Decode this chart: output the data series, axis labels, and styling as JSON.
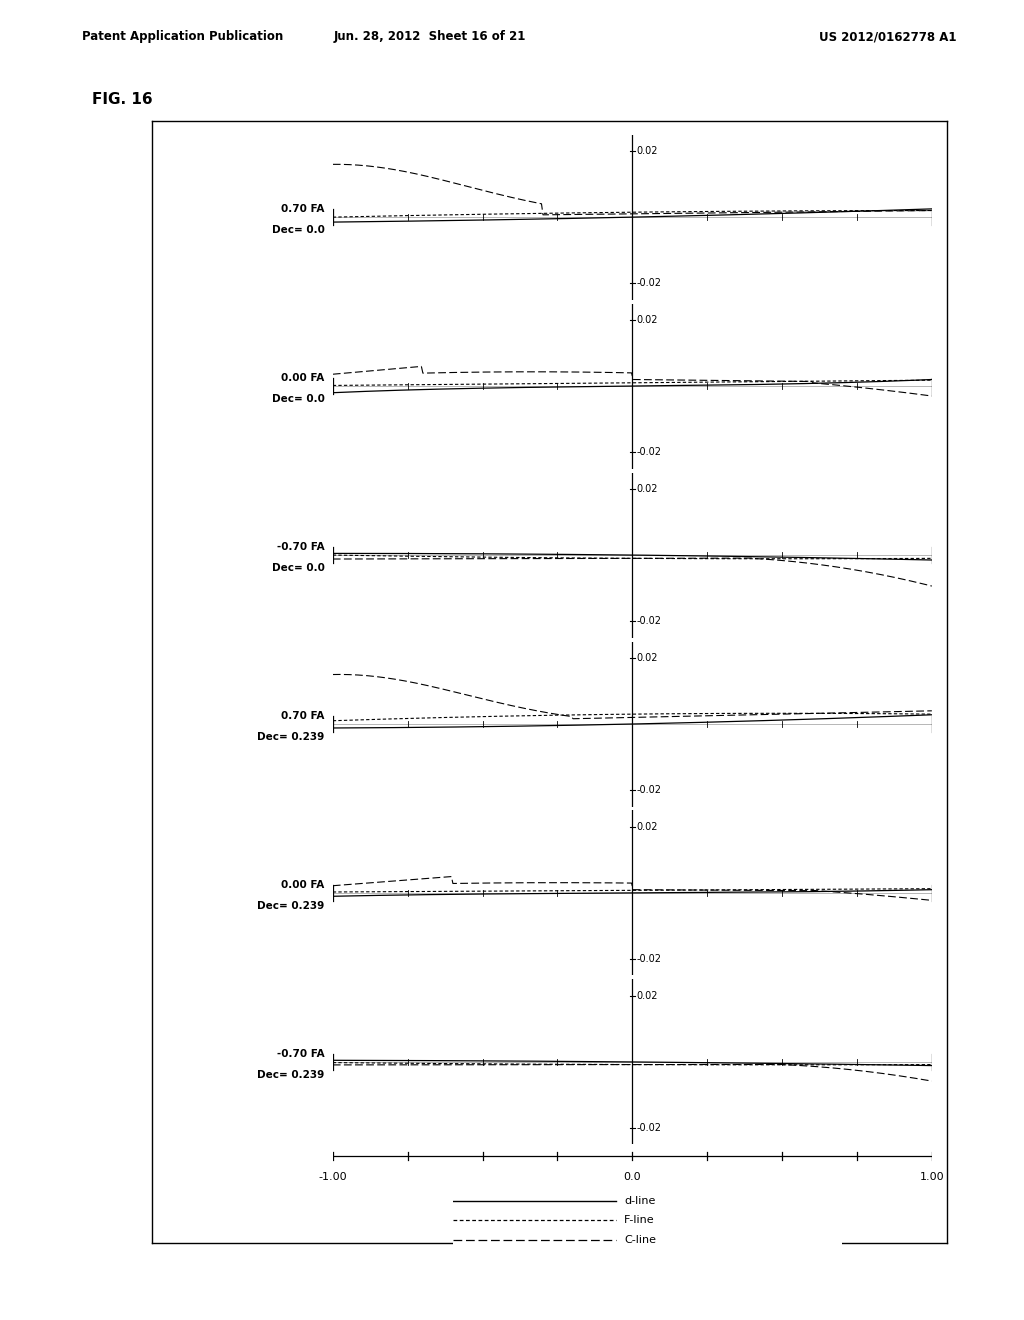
{
  "figure_title": "FIG. 16",
  "header_left": "Patent Application Publication",
  "header_center": "Jun. 28, 2012  Sheet 16 of 21",
  "header_right": "US 2012/0162778 A1",
  "panels": [
    {
      "label_line1": "0.70 FA",
      "label_line2": "Dec= 0.0"
    },
    {
      "label_line1": "0.00 FA",
      "label_line2": "Dec= 0.0"
    },
    {
      "label_line1": "-0.70 FA",
      "label_line2": "Dec= 0.0"
    },
    {
      "label_line1": "0.70 FA",
      "label_line2": "Dec= 0.239"
    },
    {
      "label_line1": "0.00 FA",
      "label_line2": "Dec= 0.239"
    },
    {
      "label_line1": "-0.70 FA",
      "label_line2": "Dec= 0.239"
    }
  ],
  "ylim": [
    -0.025,
    0.025
  ],
  "xlim": [
    -1.0,
    1.0
  ],
  "legend_solid": "d-line",
  "legend_fine_dash": "F-line",
  "legend_coarse_dash": "C-line",
  "background_color": "#ffffff"
}
